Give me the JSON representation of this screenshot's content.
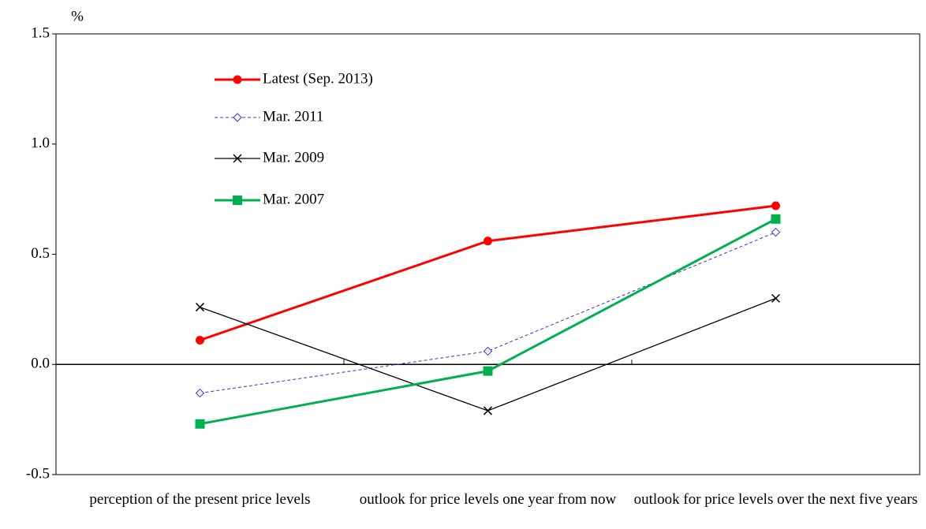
{
  "chart_data": {
    "type": "line",
    "y_label": "%",
    "categories": [
      "perception of the present price levels",
      "outlook for price levels one year from now",
      "outlook for price levels over the next five years"
    ],
    "series": [
      {
        "name": "Latest (Sep. 2013)",
        "color": "#ff0000",
        "marker": "circle",
        "dash": false,
        "values": [
          0.11,
          0.56,
          0.72
        ]
      },
      {
        "name": "Mar. 2011",
        "color": "#3333cc",
        "marker": "diamond",
        "dash": true,
        "values": [
          -0.13,
          0.06,
          0.6
        ]
      },
      {
        "name": "Mar. 2009",
        "color": "#000000",
        "marker": "x",
        "dash": false,
        "values": [
          0.26,
          -0.21,
          0.3
        ]
      },
      {
        "name": "Mar. 2007",
        "color": "#00b050",
        "marker": "square",
        "dash": false,
        "values": [
          -0.27,
          -0.03,
          0.66
        ]
      }
    ],
    "ylim": [
      -0.5,
      1.5
    ],
    "yticks": [
      -0.5,
      {
        "value": 0,
        "label": "0.0"
      },
      0.5,
      {
        "value": 1,
        "label": "1.0"
      },
      1.5
    ],
    "grid": false,
    "legend": "upper-left"
  }
}
